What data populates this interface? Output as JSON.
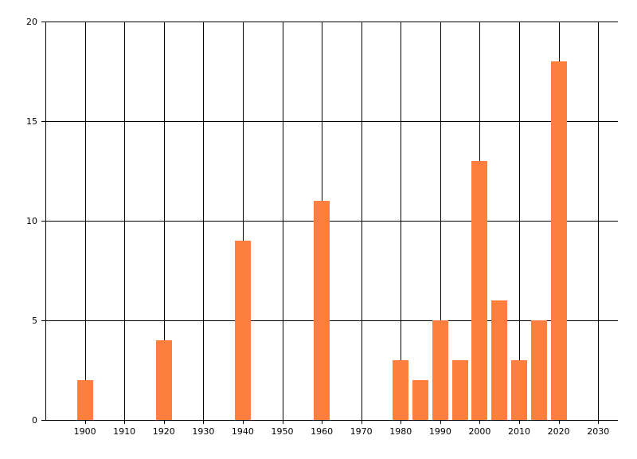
{
  "chart_data": {
    "type": "bar",
    "title": "",
    "xlabel": "",
    "ylabel": "",
    "x": [
      1900,
      1920,
      1940,
      1960,
      1980,
      1985,
      1990,
      1995,
      2000,
      2005,
      2010,
      2015,
      2020
    ],
    "values": [
      2,
      4,
      9,
      11,
      3,
      2,
      5,
      3,
      13,
      6,
      3,
      5,
      18
    ],
    "xlim": [
      1890,
      2035
    ],
    "ylim": [
      0,
      20
    ],
    "x_ticks": [
      "1900",
      "1910",
      "1920",
      "1930",
      "1940",
      "1950",
      "1960",
      "1970",
      "1980",
      "1990",
      "2000",
      "2010",
      "2020",
      "2030"
    ],
    "y_ticks": [
      "0",
      "5",
      "10",
      "15",
      "20"
    ],
    "grid": true,
    "bar_color": "#FF7F3F",
    "grid_color": "#000000"
  }
}
